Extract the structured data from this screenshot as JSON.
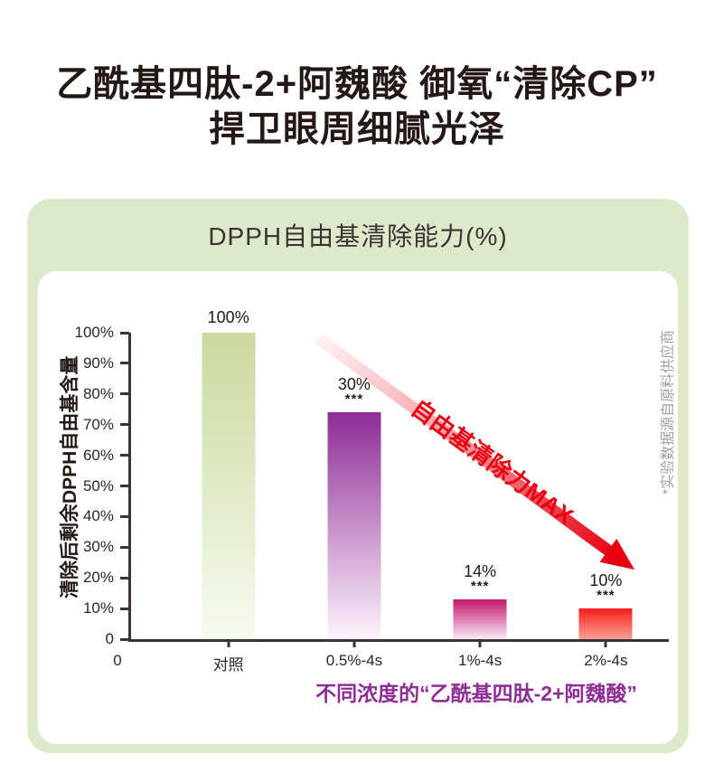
{
  "page": {
    "title_line1": "乙酰基四肽-2+阿魏酸 御氧“清除CP”",
    "title_line2": "捍卫眼周细腻光泽",
    "title_color": "#231815"
  },
  "panel": {
    "header": "DPPH自由基清除能力(%)",
    "background_color": "#dee9c9"
  },
  "chart_data": {
    "type": "bar",
    "title": "DPPH自由基清除能力(%)",
    "ylabel": "清除后剩余DPPH自由基含量",
    "x_origin_label": "0",
    "ylim": [
      0,
      100
    ],
    "ytick_labels": [
      "0",
      "10%",
      "20%",
      "30%",
      "40%",
      "50%",
      "60%",
      "70%",
      "80%",
      "90%",
      "100%"
    ],
    "categories": [
      "对照",
      "0.5%-4s",
      "1%-4s",
      "2%-4s"
    ],
    "values": [
      100,
      30,
      14,
      10
    ],
    "value_labels": [
      "100%",
      "30%",
      "14%",
      "10%"
    ],
    "significance": [
      "",
      "***",
      "***",
      "***"
    ],
    "bar_drawn_heights_pct": [
      100,
      74,
      13,
      10
    ],
    "bar_colors_top": [
      "#ccd89e",
      "#8e2d96",
      "#c4156e",
      "#f91d1d"
    ],
    "bar_colors_bottom": [
      "#f7faf0",
      "#fdf3fc",
      "#fbe9f5",
      "#f9a095"
    ],
    "axis_color": "#3a3233",
    "grid": false,
    "legend": false
  },
  "annotations": {
    "arrow_label": "自由基清除力MAX",
    "arrow_color": "#e60012",
    "source_note": "*实验数据源自原料供应商",
    "bottom_caption": "不同浓度的“乙酰基四肽-2+阿魏酸”",
    "caption_color": "#8e2d96"
  }
}
